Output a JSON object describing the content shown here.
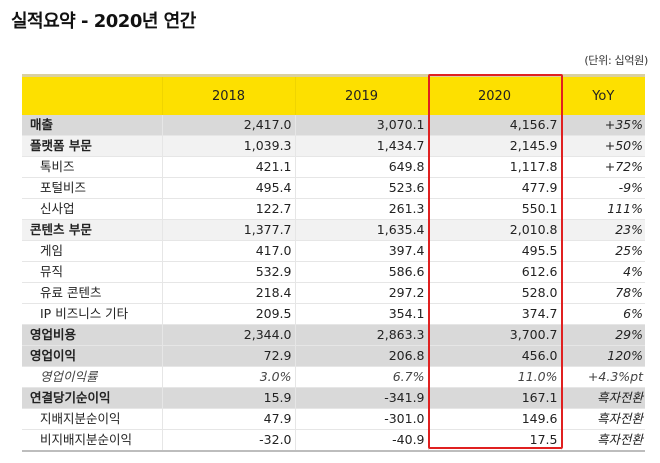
{
  "title": "실적요약 - 2020년 연간",
  "unit_label": "(단위: 십억원)",
  "table": {
    "headers": [
      "",
      "2018",
      "2019",
      "2020",
      "YoY"
    ],
    "highlight_column": "2020",
    "highlight_color": "#e02020",
    "header_color": "#fde000",
    "rows": [
      {
        "label": "매출",
        "style": "main",
        "v2018": "2,417.0",
        "v2019": "3,070.1",
        "v2020": "4,156.7",
        "yoy": "+35%"
      },
      {
        "label": "플랫폼 부문",
        "style": "sub1",
        "v2018": "1,039.3",
        "v2019": "1,434.7",
        "v2020": "2,145.9",
        "yoy": "+50%"
      },
      {
        "label": "톡비즈",
        "style": "child",
        "v2018": "421.1",
        "v2019": "649.8",
        "v2020": "1,117.8",
        "yoy": "+72%"
      },
      {
        "label": "포털비즈",
        "style": "child",
        "v2018": "495.4",
        "v2019": "523.6",
        "v2020": "477.9",
        "yoy": "-9%"
      },
      {
        "label": "신사업",
        "style": "child",
        "v2018": "122.7",
        "v2019": "261.3",
        "v2020": "550.1",
        "yoy": "111%"
      },
      {
        "label": "콘텐츠 부문",
        "style": "sub1",
        "v2018": "1,377.7",
        "v2019": "1,635.4",
        "v2020": "2,010.8",
        "yoy": "23%"
      },
      {
        "label": "게임",
        "style": "child",
        "v2018": "417.0",
        "v2019": "397.4",
        "v2020": "495.5",
        "yoy": "25%"
      },
      {
        "label": "뮤직",
        "style": "child",
        "v2018": "532.9",
        "v2019": "586.6",
        "v2020": "612.6",
        "yoy": "4%"
      },
      {
        "label": "유료 콘텐츠",
        "style": "child",
        "v2018": "218.4",
        "v2019": "297.2",
        "v2020": "528.0",
        "yoy": "78%"
      },
      {
        "label": "IP 비즈니스 기타",
        "style": "child",
        "v2018": "209.5",
        "v2019": "354.1",
        "v2020": "374.7",
        "yoy": "6%"
      },
      {
        "label": "영업비용",
        "style": "main",
        "v2018": "2,344.0",
        "v2019": "2,863.3",
        "v2020": "3,700.7",
        "yoy": "29%"
      },
      {
        "label": "영업이익",
        "style": "main",
        "v2018": "72.9",
        "v2019": "206.8",
        "v2020": "456.0",
        "yoy": "120%"
      },
      {
        "label": "영업이익률",
        "style": "ratio",
        "v2018": "3.0%",
        "v2019": "6.7%",
        "v2020": "11.0%",
        "yoy": "+4.3%pt"
      },
      {
        "label": "연결당기순이익",
        "style": "main",
        "v2018": "15.9",
        "v2019": "-341.9",
        "v2020": "167.1",
        "yoy": "흑자전환"
      },
      {
        "label": "지배지분순이익",
        "style": "child",
        "v2018": "47.9",
        "v2019": "-301.0",
        "v2020": "149.6",
        "yoy": "흑자전환"
      },
      {
        "label": "비지배지분순이익",
        "style": "child",
        "v2018": "-32.0",
        "v2019": "-40.9",
        "v2020": "17.5",
        "yoy": "흑자전환"
      }
    ]
  }
}
